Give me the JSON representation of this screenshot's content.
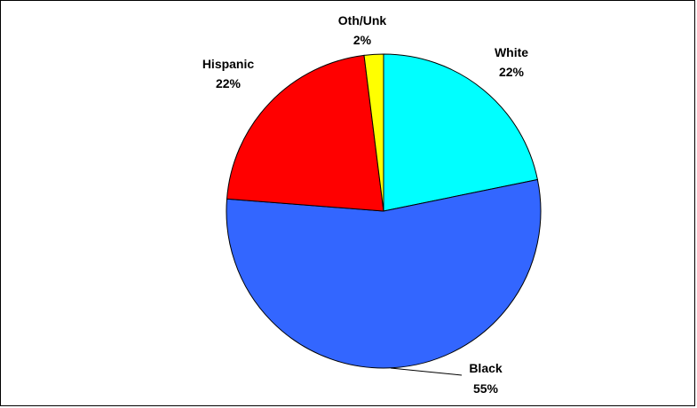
{
  "chart_data": {
    "type": "pie",
    "title": "",
    "start": "top-clockwise",
    "slices": [
      {
        "label": "White",
        "pct_label": "22%",
        "value": 22,
        "color": "#00FFFF"
      },
      {
        "label": "Black",
        "pct_label": "55%",
        "value": 55,
        "color": "#3366FF"
      },
      {
        "label": "Hispanic",
        "pct_label": "22%",
        "value": 22,
        "color": "#FF0000"
      },
      {
        "label": "Oth/Unk",
        "pct_label": "2%",
        "value": 2,
        "color": "#FFFF00"
      }
    ]
  }
}
